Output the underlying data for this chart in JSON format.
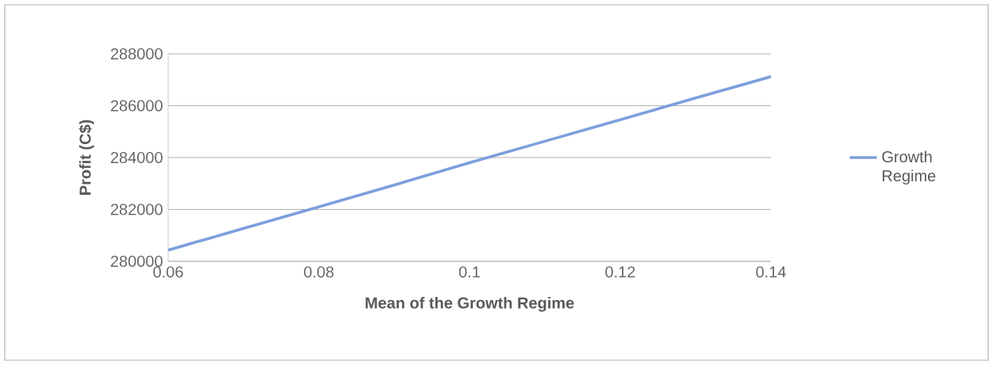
{
  "chart_data": {
    "type": "line",
    "xlabel": "Mean of the Growth Regime",
    "ylabel": "Profit (C$)",
    "x": [
      0.06,
      0.07,
      0.08,
      0.09,
      0.1,
      0.11,
      0.12,
      0.13,
      0.14
    ],
    "series": [
      {
        "name": "Growth Regime",
        "color": "#7c9fdc",
        "values": [
          280430,
          281270,
          282100,
          282940,
          283800,
          284630,
          285460,
          286300,
          287120
        ]
      }
    ],
    "xlim": [
      0.06,
      0.14
    ],
    "xticks": [
      0.06,
      0.08,
      0.1,
      0.12,
      0.14
    ],
    "ylim": [
      280000,
      288000
    ],
    "yticks": [
      280000,
      282000,
      284000,
      286000,
      288000
    ],
    "grid": "y",
    "legend": "right",
    "marker": "none",
    "line_style": "solid"
  }
}
